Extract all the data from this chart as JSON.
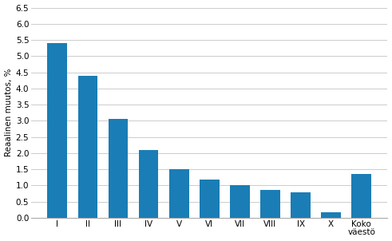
{
  "categories": [
    "I",
    "II",
    "III",
    "IV",
    "V",
    "VI",
    "VII",
    "VIII",
    "IX",
    "X",
    "Koko\nväestö"
  ],
  "values": [
    5.4,
    4.4,
    3.05,
    2.1,
    1.5,
    1.18,
    1.02,
    0.87,
    0.78,
    0.18,
    1.35
  ],
  "bar_color": "#1a7db5",
  "ylabel": "Reaalinen muutos, %",
  "ylim": [
    0,
    6.5
  ],
  "yticks": [
    0.0,
    0.5,
    1.0,
    1.5,
    2.0,
    2.5,
    3.0,
    3.5,
    4.0,
    4.5,
    5.0,
    5.5,
    6.0,
    6.5
  ],
  "background_color": "#ffffff",
  "grid_color": "#cccccc",
  "tick_fontsize": 7.5,
  "ylabel_fontsize": 7.5
}
